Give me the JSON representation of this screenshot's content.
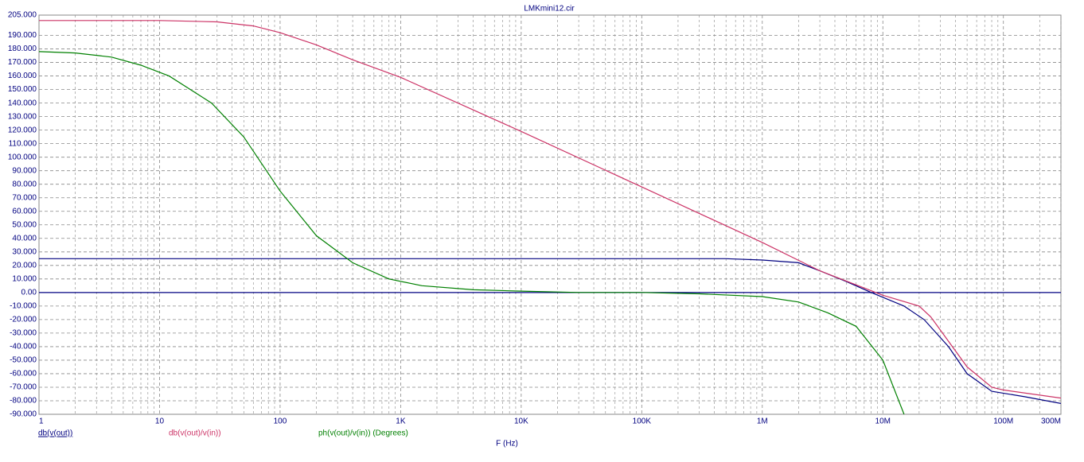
{
  "chart_data": {
    "type": "line",
    "title": "LMKmini12.cir",
    "x_label": "F (Hz)",
    "x_log": true,
    "grid": true,
    "minor_grid": true,
    "xlim": [
      1,
      300000000
    ],
    "xticks": [
      1,
      10,
      100,
      {
        "value": 1000,
        "label": "1K"
      },
      {
        "value": 10000,
        "label": "10K"
      },
      {
        "value": 100000,
        "label": "100K"
      },
      {
        "value": 1000000,
        "label": "1M"
      },
      {
        "value": 10000000,
        "label": "10M"
      },
      {
        "value": 100000000,
        "label": "100M"
      },
      {
        "value": 300000000,
        "label": "300M"
      }
    ],
    "ylim": [
      -90,
      205
    ],
    "yticks": [
      {
        "value": 205,
        "label": "205.000"
      },
      {
        "value": 190,
        "label": "190.000"
      },
      {
        "value": 180,
        "label": "180.000"
      },
      {
        "value": 170,
        "label": "170.000"
      },
      {
        "value": 160,
        "label": "160.000"
      },
      {
        "value": 150,
        "label": "150.000"
      },
      {
        "value": 140,
        "label": "140.000"
      },
      {
        "value": 130,
        "label": "130.000"
      },
      {
        "value": 120,
        "label": "120.000"
      },
      {
        "value": 110,
        "label": "110.000"
      },
      {
        "value": 100,
        "label": "100.000"
      },
      {
        "value": 90,
        "label": "90.000"
      },
      {
        "value": 80,
        "label": "80.000"
      },
      {
        "value": 70,
        "label": "70.000"
      },
      {
        "value": 60,
        "label": "60.000"
      },
      {
        "value": 50,
        "label": "50.000"
      },
      {
        "value": 40,
        "label": "40.000"
      },
      {
        "value": 30,
        "label": "30.000"
      },
      {
        "value": 20,
        "label": "20.000"
      },
      {
        "value": 10,
        "label": "10.000"
      },
      {
        "value": 0,
        "label": "0.00"
      },
      {
        "value": -10,
        "label": "-10.000"
      },
      {
        "value": -20,
        "label": "-20.000"
      },
      {
        "value": -30,
        "label": "-30.000"
      },
      {
        "value": -40,
        "label": "-40.000"
      },
      {
        "value": -50,
        "label": "-50.000"
      },
      {
        "value": -60,
        "label": "-60.000"
      },
      {
        "value": -70,
        "label": "-70.000"
      },
      {
        "value": -80,
        "label": "-80.000"
      },
      {
        "value": -90,
        "label": "-90.000"
      }
    ],
    "series": [
      {
        "name": "db(v(out))",
        "color": "#000080",
        "x": [
          1,
          10,
          100,
          1000,
          10000,
          100000,
          500000,
          1000000,
          2000000,
          3000000,
          5000000,
          8000000,
          15000000,
          22000000,
          35000000,
          50000000,
          80000000,
          150000000,
          300000000
        ],
        "values": [
          25,
          25,
          25,
          25,
          25,
          25,
          25,
          24,
          22,
          16,
          8,
          0,
          -10,
          -20,
          -40,
          -60,
          -73,
          -77,
          -82
        ]
      },
      {
        "name": "db(v(out)/v(in))",
        "color": "#cc3366",
        "x": [
          1,
          10,
          30,
          60,
          100,
          200,
          400,
          1000,
          10000,
          100000,
          1000000,
          3000000,
          10000000,
          20000000,
          25000000,
          50000000,
          80000000,
          100000000,
          300000000
        ],
        "values": [
          201,
          201,
          200,
          197,
          192,
          183,
          172,
          159,
          119,
          78,
          37,
          16,
          -2,
          -10,
          -18,
          -55,
          -70,
          -72,
          -78
        ]
      },
      {
        "name": "ph(v(out)/v(in)) (Degrees)",
        "color": "#008000",
        "x": [
          1,
          2,
          4,
          7,
          12,
          27,
          50,
          100,
          200,
          400,
          800,
          1500,
          4000,
          10000,
          30000,
          100000,
          300000,
          1000000,
          2000000,
          3500000,
          6000000,
          10000000,
          15000000
        ],
        "values": [
          178,
          177,
          174,
          168,
          160,
          140,
          115,
          75,
          42,
          22,
          10,
          5,
          2,
          1,
          0,
          0,
          -1,
          -3,
          -7,
          -15,
          -25,
          -50,
          -90
        ]
      }
    ]
  }
}
